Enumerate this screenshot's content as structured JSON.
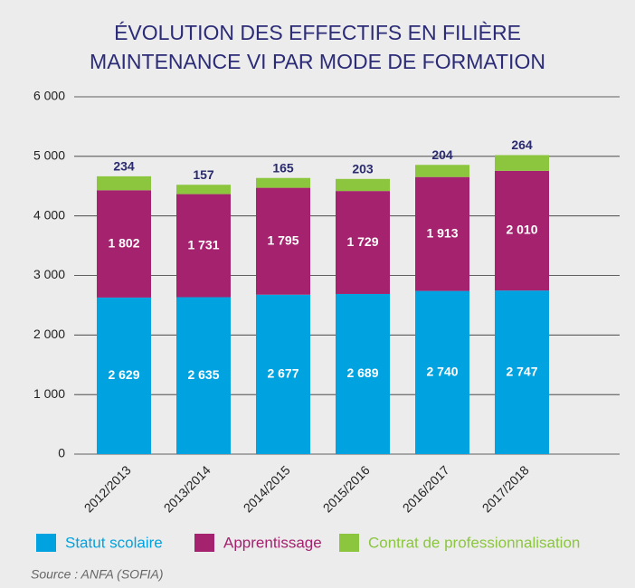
{
  "chart_data": {
    "type": "stacked_bar",
    "title": [
      "ÉVOLUTION DES EFFECTIFS EN FILIÈRE",
      "MAINTENANCE VI PAR MODE DE FORMATION"
    ],
    "categories": [
      "2012/2013",
      "2013/2014",
      "2014/2015",
      "2015/2016",
      "2016/2017",
      "2017/2018"
    ],
    "series": [
      {
        "name": "Statut scolaire",
        "color": "#00a3e0",
        "values": [
          2629,
          2635,
          2677,
          2689,
          2740,
          2747
        ],
        "value_labels": [
          "2 629",
          "2 635",
          "2 677",
          "2 689",
          "2 740",
          "2 747"
        ]
      },
      {
        "name": "Apprentissage",
        "color": "#a5226f",
        "values": [
          1802,
          1731,
          1795,
          1729,
          1913,
          2010
        ],
        "value_labels": [
          "1 802",
          "1 731",
          "1 795",
          "1 729",
          "1 913",
          "2 010"
        ]
      },
      {
        "name": "Contrat de professionnalisation",
        "color": "#8cc63f",
        "values": [
          234,
          157,
          165,
          203,
          204,
          264
        ]
      }
    ],
    "ylim": [
      0,
      6000
    ],
    "yticks": [
      0,
      {
        "value": 1000,
        "label": "1 000"
      },
      {
        "value": 2000,
        "label": "2 000"
      },
      {
        "value": 3000,
        "label": "3 000"
      },
      {
        "value": 4000,
        "label": "4 000"
      },
      {
        "value": 5000,
        "label": "5 000"
      },
      {
        "value": 6000,
        "label": "6 000"
      }
    ],
    "grid": true,
    "legend": "bottom",
    "source": "Source : ANFA (SOFIA)"
  }
}
